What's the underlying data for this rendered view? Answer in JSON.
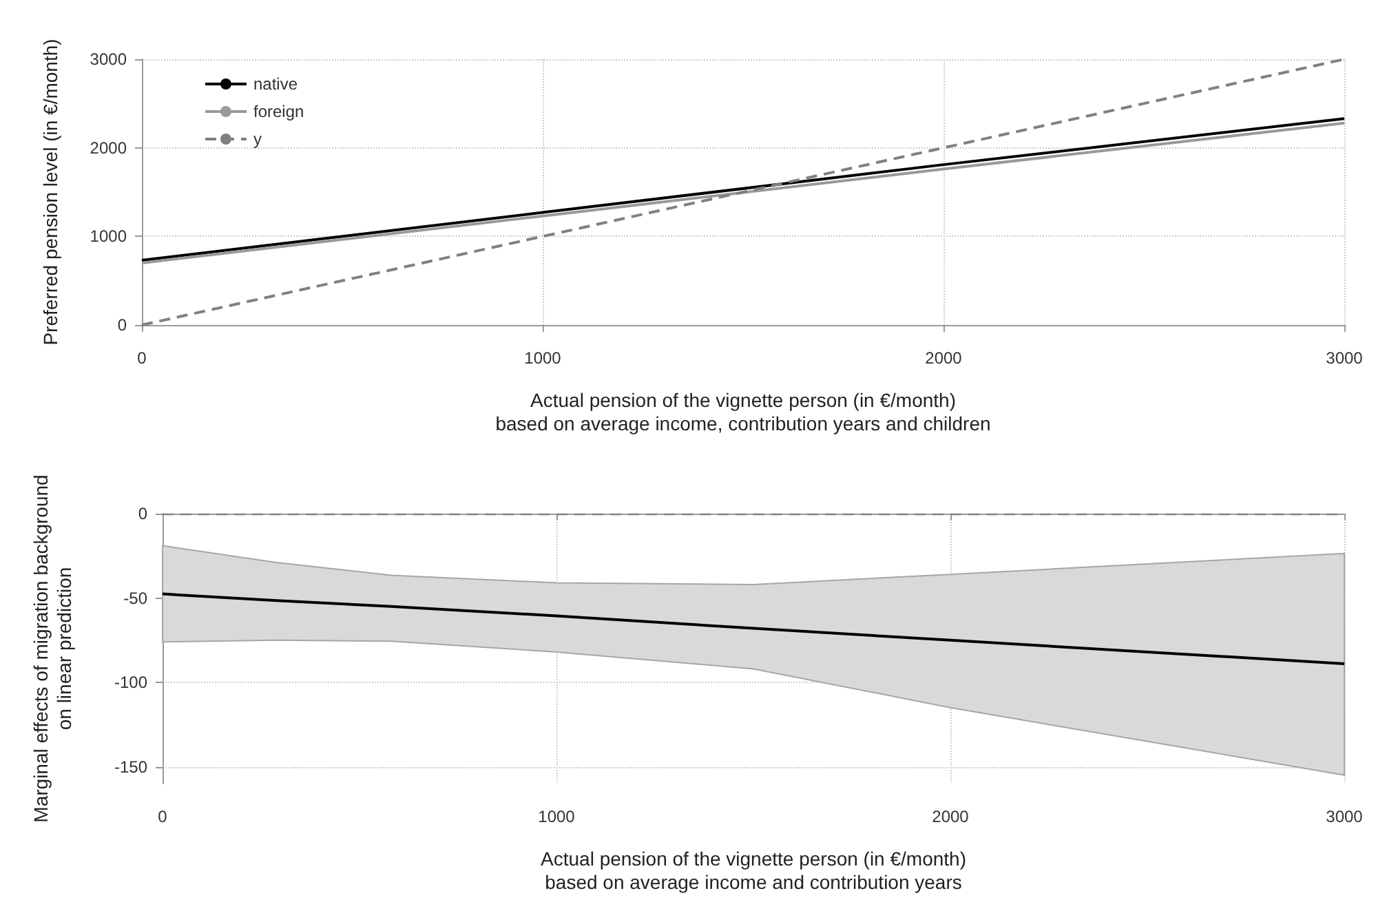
{
  "chart_data": [
    {
      "type": "line",
      "xlabel": "Actual pension of the vignette person (in €/month)\nbased on average income, contribution years and children",
      "ylabel": "Preferred pension level (in €/month)",
      "x": [
        0,
        1000,
        2000,
        3000
      ],
      "series": [
        {
          "name": "native",
          "color": "#000000",
          "values": [
            730,
            1270,
            1810,
            2330
          ],
          "line_style": "solid"
        },
        {
          "name": "foreign",
          "color": "#999999",
          "values": [
            700,
            1230,
            1760,
            2280
          ],
          "line_style": "solid"
        },
        {
          "name": "y",
          "color": "#808080",
          "values": [
            0,
            1000,
            2000,
            3000
          ],
          "line_style": "dashed"
        }
      ],
      "xlim": [
        0,
        3000
      ],
      "xticks": [
        0,
        1000,
        2000,
        3000
      ],
      "ylim": [
        0,
        3000
      ],
      "yticks": [
        0,
        1000,
        2000,
        3000
      ],
      "grid": true,
      "legend": "top left",
      "marker": "none"
    },
    {
      "type": "line",
      "xlabel": "Actual pension of the vignette person (in €/month)\nbased on average income and contribution years",
      "ylabel": "Marginal effects of migration background\non linear prediction",
      "x": [
        0,
        290,
        580,
        1000,
        1500,
        2000,
        3000
      ],
      "series": [
        {
          "color": "#000000",
          "values": [
            -47.6,
            -51.5,
            -55,
            -60.6,
            -68,
            -75,
            -89
          ],
          "lower": [
            -76,
            -75,
            -75.6,
            -82,
            -92,
            -115,
            -155
          ],
          "upper": [
            -19,
            -29,
            -36.5,
            -41,
            -42,
            -36,
            -23.6
          ]
        }
      ],
      "xlim": [
        0,
        3000
      ],
      "xticks": [
        0,
        1000,
        2000,
        3000
      ],
      "ylim": [
        -160,
        0
      ],
      "yticks": [
        -150,
        -100,
        -50,
        0
      ],
      "grid": true,
      "marker": "none",
      "ref_lines": [
        {
          "axis": "y",
          "value": 0,
          "color": "#808080",
          "line_style": "dashed"
        }
      ]
    }
  ]
}
